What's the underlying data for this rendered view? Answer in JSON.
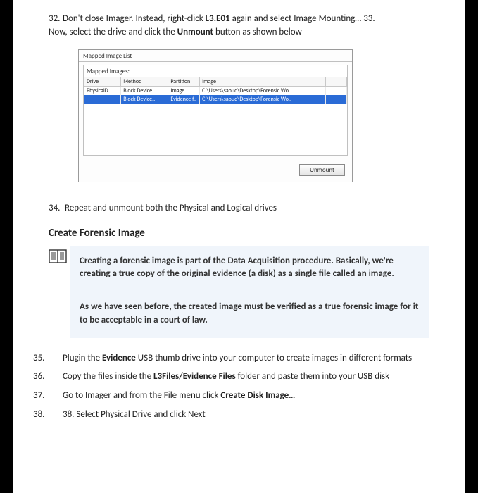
{
  "steps_top": [
    {
      "num": "32.",
      "html": "Don't close Imager. Instead, right-click <b>L3.E01</b> again and select Image Mounting… 33. Now, select the drive and click the <b>Unmount</b> button as shown below"
    }
  ],
  "shot": {
    "title": "Mapped Image List",
    "group_label": "Mapped Images:",
    "headers": [
      "Drive",
      "Method",
      "Partition",
      "Image",
      ""
    ],
    "col_widths": [
      "14%",
      "18%",
      "12%",
      "48%",
      "8%"
    ],
    "rows": [
      {
        "sel": false,
        "cells": [
          "PhysicalD..",
          "Block Device..",
          "Image",
          "C:\\Users\\saoud\\Desktop\\Forensic Wo..",
          ""
        ]
      },
      {
        "sel": true,
        "cells": [
          "",
          "Block Device..",
          "Evidence f..",
          "C:\\Users\\saoud\\Desktop\\Forensic Wo..",
          ""
        ]
      }
    ],
    "button": "Unmount"
  },
  "step34": {
    "num": "34.",
    "text": "Repeat and unmount both the Physical and Logical drives"
  },
  "heading": "Create Forensic Image",
  "info": {
    "p1": "Creating a forensic image is part of the Data Acquisition procedure. Basically, we're creating a true copy of the original evidence (a disk) as a single file called an image.",
    "p2": "As we have seen before, the created image must be verified as a true forensic image for it to be acceptable in a court of law."
  },
  "steps_bottom": [
    {
      "num": "35.",
      "html": "Plugin the <b>Evidence</b> USB thumb drive into your computer to create images in different formats"
    },
    {
      "num": "36.",
      "html": "Copy the files inside the <b>L3Files/Evidence Files</b> folder and paste them into your USB disk"
    },
    {
      "num": "37.",
      "html": "Go to Imager and from the File menu click <b>Create Disk Image…</b>"
    },
    {
      "num": "38.",
      "html": "38. Select Physical Drive and click Next"
    }
  ]
}
